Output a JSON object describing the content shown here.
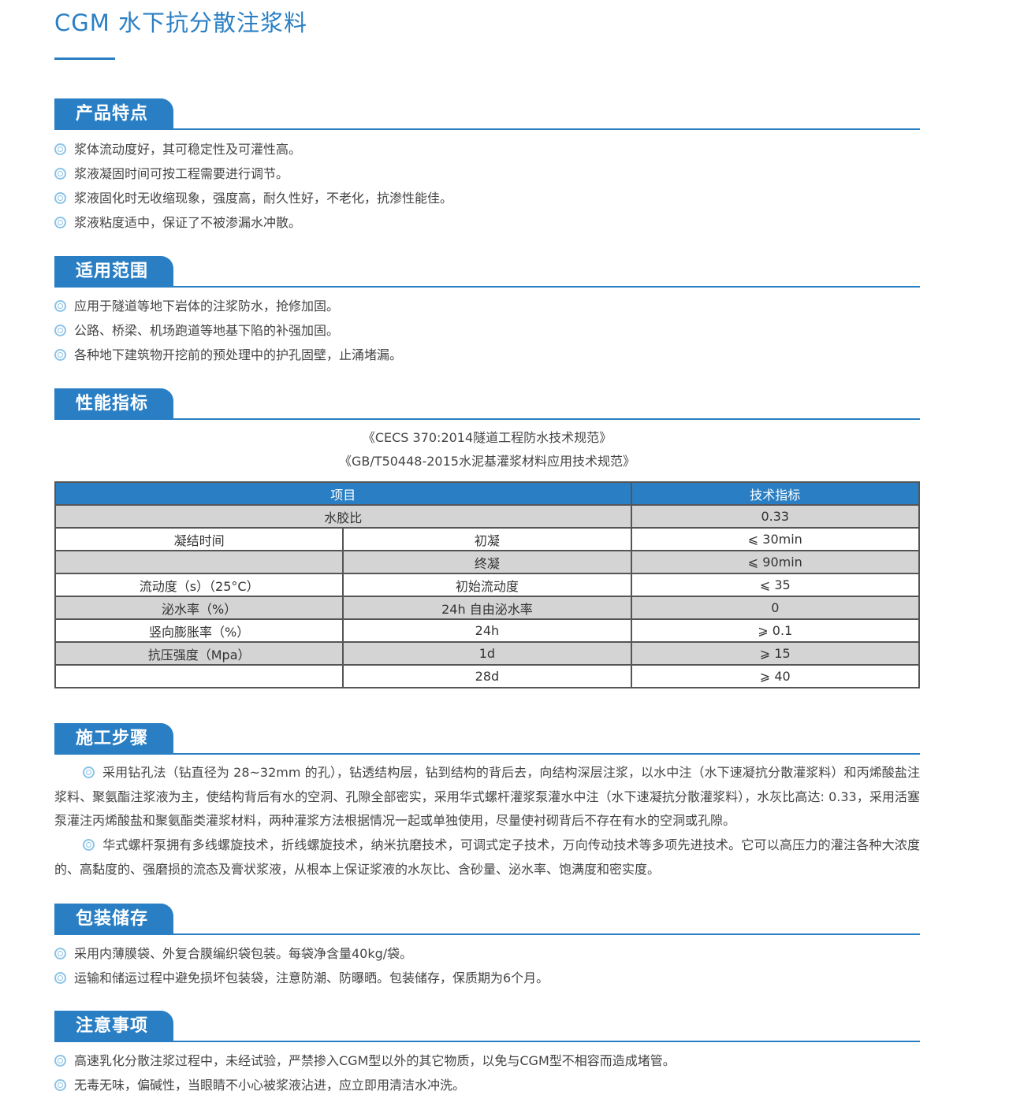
{
  "title": "CGM 水下抗分散注浆料",
  "colors": {
    "accent": "#2a7fc4",
    "bullet": "#8cc3e8",
    "row_gray": "#d4d4d4"
  },
  "features": {
    "heading": "产品特点",
    "items": [
      "浆体流动度好，其可稳定性及可灌性高。",
      "浆液凝固时间可按工程需要进行调节。",
      "浆液固化时无收缩现象，强度高，耐久性好，不老化，抗渗性能佳。",
      "浆液粘度适中，保证了不被渗漏水冲散。"
    ]
  },
  "scope": {
    "heading": "适用范围",
    "items": [
      "应用于隧道等地下岩体的注浆防水，抢修加固。",
      "公路、桥梁、机场跑道等地基下陷的补强加固。",
      "各种地下建筑物开挖前的预处理中的护孔固壁，止涌堵漏。"
    ]
  },
  "performance": {
    "heading": "性能指标",
    "standards": [
      "《CECS 370:2014隧道工程防水技术规范》",
      "《GB/T50448-2015水泥基灌浆材料应用技术规范》"
    ],
    "table": {
      "headers": [
        "项目",
        "技术指标"
      ],
      "rows": [
        {
          "item": "水胶比",
          "sub": "",
          "value": "0.33"
        },
        {
          "item": "凝结时间",
          "sub": "初凝",
          "value": "⩽ 30min"
        },
        {
          "item": "",
          "sub": "终凝",
          "value": "⩽ 90min"
        },
        {
          "item": "流动度（s）（25°C）",
          "sub": "初始流动度",
          "value": "⩽ 35"
        },
        {
          "item": "泌水率（%）",
          "sub": "24h 自由泌水率",
          "value": "0"
        },
        {
          "item": "竖向膨胀率（%）",
          "sub": "24h",
          "value": "⩾ 0.1"
        },
        {
          "item": "抗压强度（Mpa）",
          "sub": "1d",
          "value": "⩾ 15"
        },
        {
          "item": "",
          "sub": "28d",
          "value": "⩾ 40"
        }
      ]
    }
  },
  "construction": {
    "heading": "施工步骤",
    "paragraphs": [
      "采用钻孔法（钻直径为 28~32mm 的孔），钻透结构层，钻到结构的背后去，向结构深层注浆，以水中注（水下速凝抗分散灌浆料）和丙烯酸盐注浆料、聚氨酯注浆液为主，使结构背后有水的空洞、孔隙全部密实，采用华式螺杆灌浆泵灌水中注（水下速凝抗分散灌浆料），水灰比高达: 0.33，采用活塞泵灌注丙烯酸盐和聚氨酯类灌浆材料，两种灌浆方法根据情况一起或单独使用，尽量使衬砌背后不存在有水的空洞或孔隙。",
      "华式螺杆泵拥有多线螺旋技术，折线螺旋技术，纳米抗磨技术，可调式定子技术，万向传动技术等多项先进技术。它可以高压力的灌注各种大浓度的、高黏度的、强磨损的流态及膏状浆液，从根本上保证浆液的水灰比、含砂量、泌水率、饱满度和密实度。"
    ]
  },
  "packaging": {
    "heading": "包装储存",
    "items": [
      "采用内薄膜袋、外复合膜编织袋包装。每袋净含量40kg/袋。",
      "运输和储运过程中避免损坏包装袋，注意防潮、防曝晒。包装储存，保质期为6个月。"
    ]
  },
  "notes": {
    "heading": "注意事项",
    "items": [
      "高速乳化分散注浆过程中，未经试验，严禁掺入CGM型以外的其它物质，以免与CGM型不相容而造成堵管。",
      "无毒无味，偏碱性，当眼睛不小心被浆液沾进，应立即用清洁水冲洗。"
    ]
  }
}
